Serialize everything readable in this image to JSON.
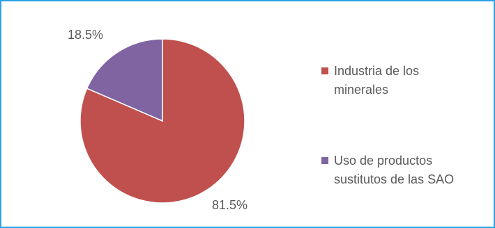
{
  "chart_data": {
    "type": "pie",
    "slices": [
      {
        "label": "Industria de los minerales",
        "value": 81.5,
        "data_label": "81.5%",
        "color": "#c0504d"
      },
      {
        "label": "Uso de productos sustitutos de las SAO",
        "value": 18.5,
        "data_label": "18.5%",
        "color": "#8064a2"
      }
    ],
    "legend": {
      "position": "right",
      "entries": [
        {
          "lines": [
            "Industria de los",
            "minerales"
          ],
          "color": "#c0504d"
        },
        {
          "lines": [
            "Uso de productos",
            "sustitutos de las SAO"
          ],
          "color": "#8064a2"
        }
      ]
    },
    "frame_color": "#2aa3e8"
  }
}
